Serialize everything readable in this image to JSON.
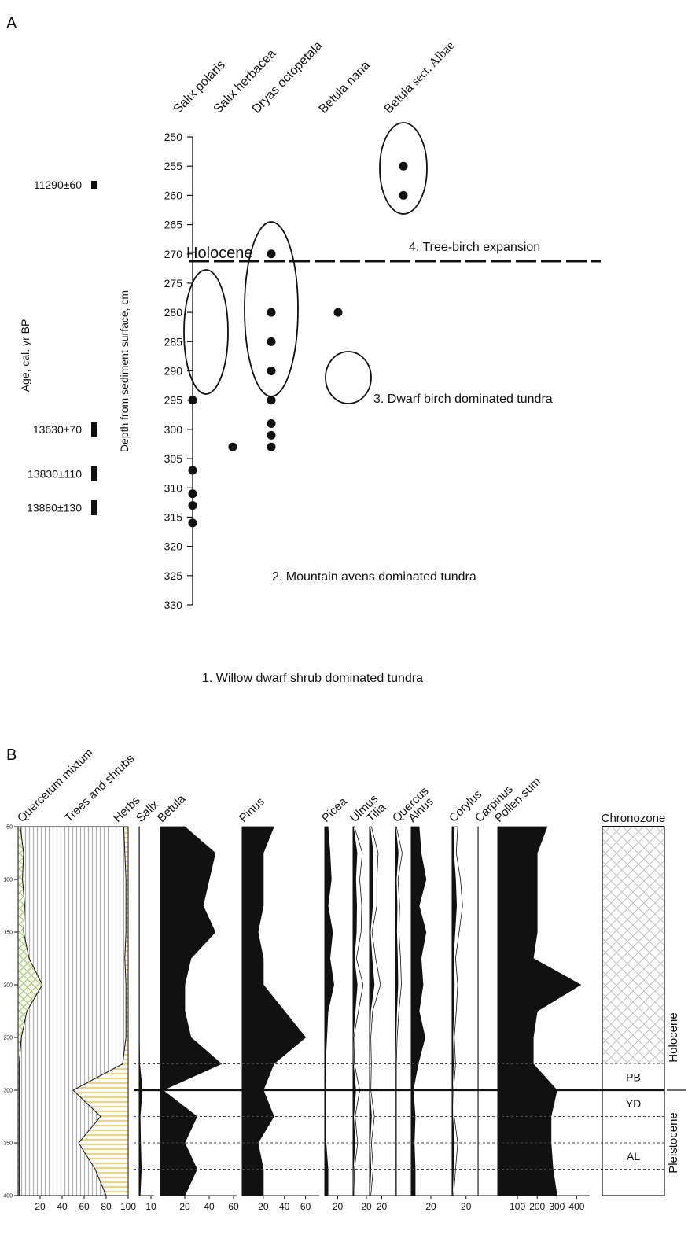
{
  "chart_data": [
    {
      "panel": "A",
      "type": "scatter",
      "ylabel": "Depth from sediment surface, cm",
      "age_axis_label": "Age, cal. yr BP",
      "ylim": [
        250,
        330
      ],
      "y_ticks": [
        250,
        255,
        260,
        265,
        270,
        275,
        280,
        285,
        290,
        295,
        300,
        305,
        310,
        315,
        320,
        325,
        330
      ],
      "taxa": [
        {
          "name": "Salix polaris",
          "depths": [
            295,
            307,
            311,
            313,
            316
          ]
        },
        {
          "name": "Salix herbacea",
          "depths": [
            303
          ]
        },
        {
          "name": "Dryas octopetala",
          "depths": [
            270,
            280,
            285,
            290,
            295,
            299,
            301,
            303
          ]
        },
        {
          "name": "Betula nana",
          "depths": [
            280
          ]
        },
        {
          "name": "Betula sect. Albae",
          "depths": [
            255,
            260
          ]
        }
      ],
      "taxon_labels": [
        {
          "main": "Salix polaris",
          "suffix": ""
        },
        {
          "main": "Salix herbacea",
          "suffix": ""
        },
        {
          "main": "Dryas octopetala",
          "suffix": ""
        },
        {
          "main": "Betula nana",
          "suffix": ""
        },
        {
          "main": "Betula ",
          "suffix": "sect. Albae"
        }
      ],
      "boundary": {
        "label": "Holocene",
        "depth": 266.3
      },
      "groups": [
        {
          "label": "1. Willow dwarf shrub dominated tundra"
        },
        {
          "label": "2. Mountain avens dominated tundra"
        },
        {
          "label": "3. Dwarf birch dominated tundra"
        },
        {
          "label": "4. Tree-birch expansion"
        }
      ],
      "dates": [
        {
          "label": "11290±60",
          "depth": 258.2
        },
        {
          "label": "13630±70",
          "depth": 300
        },
        {
          "label": "13830±110",
          "depth": 307.6
        },
        {
          "label": "13880±130",
          "depth": 313.4
        }
      ]
    },
    {
      "panel": "B",
      "type": "area",
      "ylim": [
        50,
        400
      ],
      "y_ticks": [
        50,
        100,
        150,
        200,
        250,
        300,
        350,
        400
      ],
      "depths": [
        50,
        75,
        100,
        125,
        150,
        175,
        200,
        225,
        250,
        275,
        300,
        325,
        350,
        375,
        400
      ],
      "group_curves": {
        "header_labels": [
          "Quercetum mixtum",
          "Trees and shrubs",
          "Herbs"
        ],
        "quercetum_mixtum": [
          2,
          5,
          4,
          6,
          5,
          10,
          22,
          8,
          3,
          1,
          1,
          1,
          1,
          1,
          1
        ],
        "trees_and_shrubs": [
          96,
          97,
          98,
          98,
          98,
          97,
          98,
          98,
          98,
          95,
          50,
          75,
          55,
          70,
          80
        ],
        "x_ticks": [
          20,
          40,
          60,
          80,
          100
        ]
      },
      "taxa": [
        {
          "name": "Salix",
          "values": [
            0.2,
            0.2,
            0.2,
            0.2,
            0.2,
            0.2,
            0.2,
            0.2,
            0.2,
            0.4,
            2.5,
            0.8,
            1.2,
            1.8,
            0.8
          ],
          "ticks": [
            10
          ]
        },
        {
          "name": "Betula",
          "values": [
            20,
            45,
            40,
            35,
            45,
            25,
            20,
            20,
            25,
            50,
            2,
            30,
            20,
            30,
            20
          ],
          "ticks": [
            20,
            40,
            60
          ]
        },
        {
          "name": "Pinus",
          "values": [
            30,
            20,
            20,
            20,
            15,
            20,
            20,
            40,
            60,
            30,
            20,
            30,
            15,
            20,
            20
          ],
          "ticks": [
            20,
            40,
            60
          ]
        },
        {
          "name": "Picea",
          "values": [
            5,
            8,
            10,
            5,
            12,
            8,
            14,
            5,
            3,
            1,
            2,
            2,
            2,
            5,
            5
          ],
          "ticks": [
            20
          ]
        },
        {
          "name": "Ulmus",
          "values": [
            2,
            14,
            10,
            13,
            12,
            5,
            15,
            8,
            1,
            2,
            10,
            3,
            7,
            2,
            1
          ],
          "ticks": [
            20
          ]
        },
        {
          "name": "Tilia",
          "values": [
            3,
            14,
            12,
            12,
            4,
            10,
            18,
            5,
            2,
            3,
            2,
            8,
            3,
            6,
            2
          ],
          "ticks": [
            20
          ]
        },
        {
          "name": "Quercus",
          "values": [
            1,
            8,
            3,
            5,
            4,
            6,
            7,
            4,
            2,
            1,
            1,
            1,
            1,
            1,
            1
          ],
          "ticks": []
        },
        {
          "name": "Alnus",
          "values": [
            8,
            10,
            15,
            8,
            15,
            10,
            12,
            8,
            14,
            7,
            2,
            4,
            3,
            4,
            4
          ],
          "ticks": [
            20
          ]
        },
        {
          "name": "Corylus",
          "values": [
            8,
            6,
            12,
            15,
            10,
            5,
            8,
            6,
            3,
            5,
            2,
            3,
            8,
            5,
            2
          ],
          "ticks": [
            20
          ]
        },
        {
          "name": "Carpinus",
          "values": [
            0.2,
            0.2,
            0.2,
            0.2,
            0.2,
            0.2,
            0.2,
            0.2,
            0.2,
            0.2,
            0.2,
            0.2,
            0.2,
            0.2,
            0.2
          ],
          "ticks": []
        },
        {
          "name": "Pollen sum",
          "values": [
            250,
            200,
            200,
            200,
            200,
            180,
            420,
            200,
            180,
            180,
            300,
            270,
            270,
            280,
            300
          ],
          "ticks": [
            100,
            200,
            300,
            400
          ]
        }
      ],
      "chronozone": {
        "title": "Chronozone",
        "zones": [
          "PB",
          "YD",
          "AL"
        ],
        "epochs": [
          "Holocene",
          "Pleistocene"
        ]
      },
      "boundaries": [
        {
          "depth": 275,
          "style": "dashed"
        },
        {
          "depth": 300,
          "style": "solid"
        },
        {
          "depth": 325,
          "style": "dashed"
        },
        {
          "depth": 350,
          "style": "dashed"
        },
        {
          "depth": 375,
          "style": "dashed"
        }
      ]
    }
  ],
  "labels": {
    "panel_a": "A",
    "panel_b": "B"
  }
}
